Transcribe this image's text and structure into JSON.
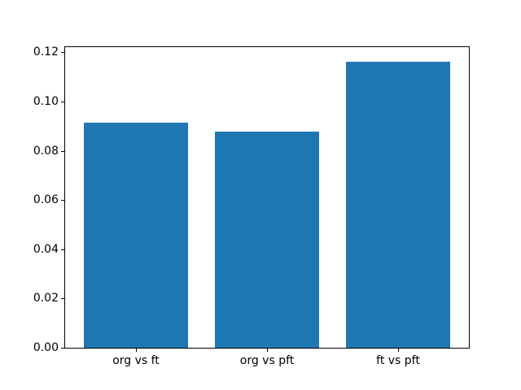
{
  "chart_data": {
    "type": "bar",
    "title": "",
    "xlabel": "",
    "ylabel": "",
    "categories": [
      "org vs ft",
      "org vs pft",
      "ft vs pft"
    ],
    "values": [
      0.0913,
      0.0877,
      0.1163
    ],
    "ylim": [
      0,
      0.1221
    ],
    "yticks": [
      0.0,
      0.02,
      0.04,
      0.06,
      0.08,
      0.1,
      0.12
    ],
    "ytick_labels": [
      "0.00",
      "0.02",
      "0.04",
      "0.06",
      "0.08",
      "0.10",
      "0.12"
    ],
    "bar_width": 0.8,
    "bar_color": "#1f77b4",
    "spine_color": "#000000",
    "background_color": "#ffffff",
    "grid": false,
    "legend": null
  }
}
